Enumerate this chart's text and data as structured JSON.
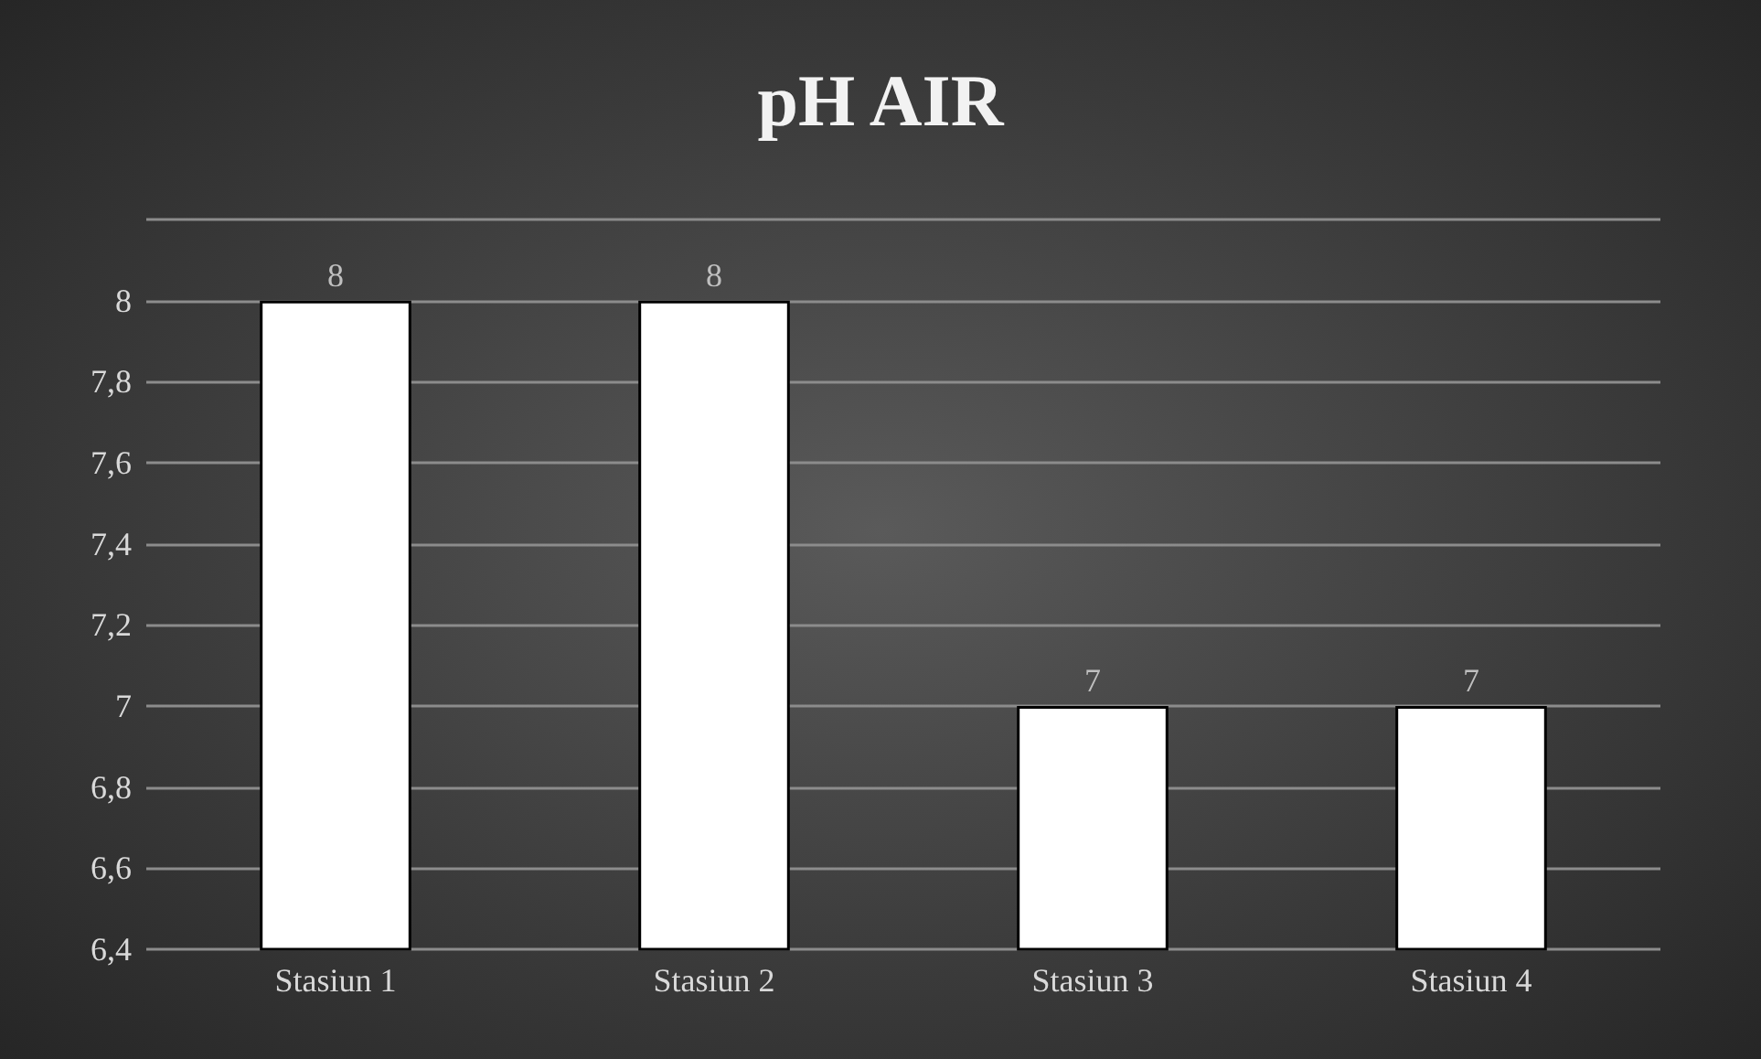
{
  "chart_data": {
    "type": "bar",
    "title": "pH AIR",
    "categories": [
      "Stasiun 1",
      "Stasiun 2",
      "Stasiun 3",
      "Stasiun 4"
    ],
    "values": [
      8,
      8,
      7,
      7
    ],
    "color": "#ffffff",
    "data_labels": true,
    "ylim": [
      6.4,
      8.2
    ],
    "yticks": [
      {
        "value": 6.4,
        "label": "6,4"
      },
      {
        "value": 6.6,
        "label": "6,6"
      },
      {
        "value": 6.8,
        "label": "6,8"
      },
      {
        "value": 7,
        "label": "7"
      },
      {
        "value": 7.2,
        "label": "7,2"
      },
      {
        "value": 7.4,
        "label": "7,4"
      },
      {
        "value": 7.6,
        "label": "7,6"
      },
      {
        "value": 7.8,
        "label": "7,8"
      },
      {
        "value": 8,
        "label": "8"
      },
      {
        "value": 8.2,
        "label": null
      }
    ],
    "grid": true
  }
}
